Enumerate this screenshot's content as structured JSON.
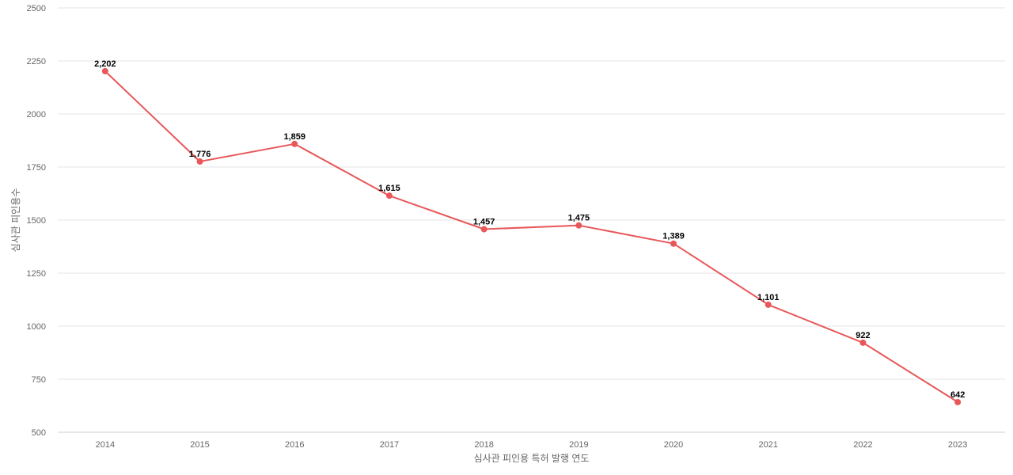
{
  "chart_data": {
    "type": "line",
    "title": "",
    "xlabel": "심사관 피인용 특허 발행 연도",
    "ylabel": "심사관 피인용수",
    "categories": [
      "2014",
      "2015",
      "2016",
      "2017",
      "2018",
      "2019",
      "2020",
      "2021",
      "2022",
      "2023"
    ],
    "series": [
      {
        "values": [
          2202,
          1776,
          1859,
          1615,
          1457,
          1475,
          1389,
          1101,
          922,
          642
        ],
        "labels": [
          "2,202",
          "1,776",
          "1,859",
          "1,615",
          "1,457",
          "1,475",
          "1,389",
          "1,101",
          "922",
          "642"
        ],
        "color": "#e8585a"
      }
    ],
    "ylim": [
      500,
      2500
    ],
    "yticks": [
      "500",
      "750",
      "1000",
      "1250",
      "1500",
      "1750",
      "2000",
      "2250",
      "2500"
    ],
    "grid": true,
    "legend": "none"
  }
}
